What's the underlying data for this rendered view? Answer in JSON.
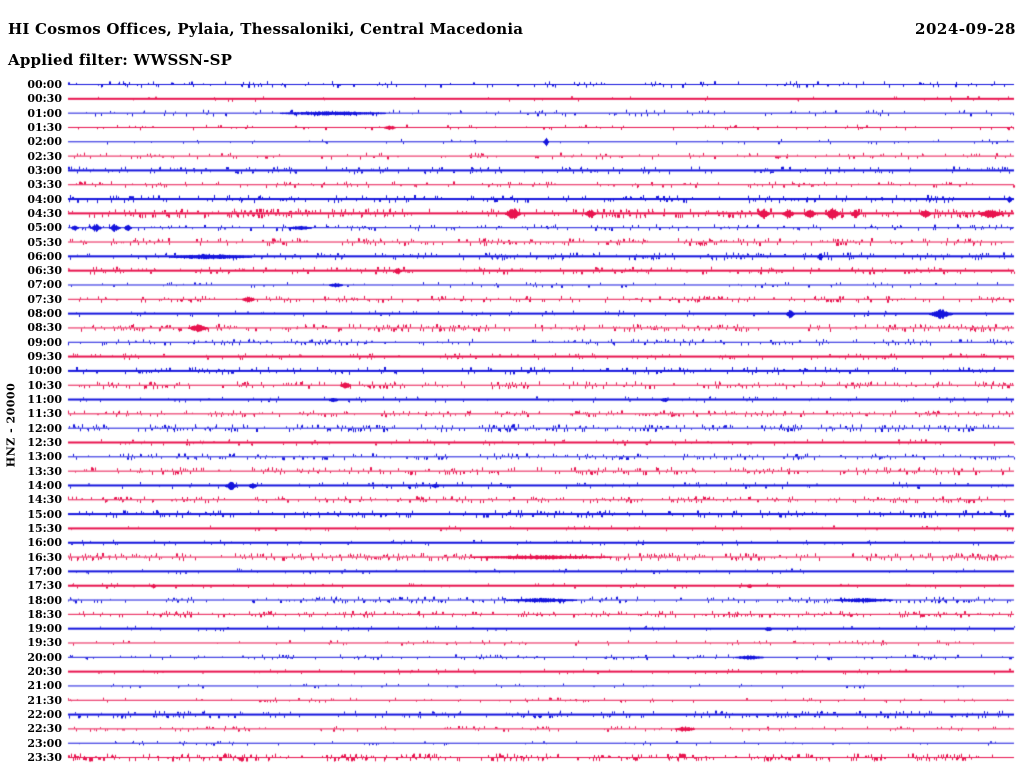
{
  "header": {
    "title": "HI Cosmos Offices, Pylaia, Thessaloniki, Central Macedonia",
    "applied_filter": "Applied filter: WWSSN-SP",
    "date": "2024-09-28"
  },
  "y_axis_label": "HNZ - 20000",
  "palette": {
    "blue": "#1414dd",
    "red": "#e8134e",
    "text": "#000000",
    "background": "#ffffff"
  },
  "chart_data": {
    "type": "line",
    "variant": "helicorder_dayplot",
    "title": "HI Cosmos Offices, Pylaia, Thessaloniki, Central Macedonia",
    "date": "2024-09-28",
    "filter": "WWSSN-SP",
    "channel": "HNZ",
    "scale_label": "HNZ - 20000",
    "minutes_per_row": 30,
    "trace_color_cycle": [
      "blue",
      "red"
    ],
    "legend_position": "none",
    "grid": false,
    "rows": [
      {
        "label": "00:00",
        "color": "blue",
        "noise_density": 0.22,
        "noise_amp": 1.5,
        "line_width": 1,
        "events": []
      },
      {
        "label": "00:30",
        "color": "red",
        "noise_density": 0.06,
        "noise_amp": 1.0,
        "line_width": 2,
        "events": []
      },
      {
        "label": "01:00",
        "color": "blue",
        "noise_density": 0.18,
        "noise_amp": 1.5,
        "line_width": 1,
        "events": [
          [
            0.28,
            2,
            45
          ]
        ]
      },
      {
        "label": "01:30",
        "color": "red",
        "noise_density": 0.14,
        "noise_amp": 1.2,
        "line_width": 1,
        "events": [
          [
            0.34,
            2,
            5
          ]
        ]
      },
      {
        "label": "02:00",
        "color": "blue",
        "noise_density": 0.1,
        "noise_amp": 1.2,
        "line_width": 1,
        "events": [
          [
            0.505,
            4,
            2
          ]
        ]
      },
      {
        "label": "02:30",
        "color": "red",
        "noise_density": 0.2,
        "noise_amp": 1.5,
        "line_width": 1,
        "events": []
      },
      {
        "label": "03:00",
        "color": "blue",
        "noise_density": 0.28,
        "noise_amp": 1.5,
        "line_width": 2,
        "events": []
      },
      {
        "label": "03:30",
        "color": "red",
        "noise_density": 0.24,
        "noise_amp": 1.5,
        "line_width": 1,
        "events": []
      },
      {
        "label": "04:00",
        "color": "blue",
        "noise_density": 0.3,
        "noise_amp": 1.6,
        "line_width": 2,
        "events": [
          [
            0.995,
            3,
            2
          ]
        ]
      },
      {
        "label": "04:30",
        "color": "red",
        "noise_density": 0.5,
        "noise_amp": 2.0,
        "line_width": 2,
        "events": [
          [
            0.47,
            6.5,
            5
          ],
          [
            0.552,
            4,
            4
          ],
          [
            0.735,
            5,
            4
          ],
          [
            0.761,
            5,
            4
          ],
          [
            0.784,
            5,
            4
          ],
          [
            0.808,
            6,
            5
          ],
          [
            0.832,
            4,
            3
          ],
          [
            0.906,
            4,
            4
          ],
          [
            0.975,
            4.5,
            8
          ]
        ]
      },
      {
        "label": "05:00",
        "color": "blue",
        "noise_density": 0.24,
        "noise_amp": 1.5,
        "line_width": 1,
        "events": [
          [
            0.007,
            3,
            3
          ],
          [
            0.029,
            4,
            4
          ],
          [
            0.049,
            4,
            4
          ],
          [
            0.063,
            3.5,
            3
          ],
          [
            0.245,
            2,
            10
          ]
        ]
      },
      {
        "label": "05:30",
        "color": "red",
        "noise_density": 0.42,
        "noise_amp": 1.8,
        "line_width": 1,
        "events": []
      },
      {
        "label": "06:00",
        "color": "blue",
        "noise_density": 0.32,
        "noise_amp": 1.6,
        "line_width": 2,
        "events": [
          [
            0.15,
            2,
            35
          ],
          [
            0.795,
            4,
            2
          ]
        ]
      },
      {
        "label": "06:30",
        "color": "red",
        "noise_density": 0.28,
        "noise_amp": 1.5,
        "line_width": 2,
        "events": [
          [
            0.348,
            3,
            3
          ]
        ]
      },
      {
        "label": "07:00",
        "color": "blue",
        "noise_density": 0.14,
        "noise_amp": 1.2,
        "line_width": 1,
        "events": [
          [
            0.283,
            2,
            6
          ]
        ]
      },
      {
        "label": "07:30",
        "color": "red",
        "noise_density": 0.33,
        "noise_amp": 1.5,
        "line_width": 1,
        "events": [
          [
            0.19,
            3,
            5
          ]
        ]
      },
      {
        "label": "08:00",
        "color": "blue",
        "noise_density": 0.1,
        "noise_amp": 1.2,
        "line_width": 2,
        "events": [
          [
            0.763,
            4,
            3
          ],
          [
            0.922,
            4.5,
            8
          ]
        ]
      },
      {
        "label": "08:30",
        "color": "red",
        "noise_density": 0.42,
        "noise_amp": 1.8,
        "line_width": 1,
        "events": [
          [
            0.137,
            4,
            7
          ]
        ]
      },
      {
        "label": "09:00",
        "color": "blue",
        "noise_density": 0.3,
        "noise_amp": 1.5,
        "line_width": 1,
        "events": []
      },
      {
        "label": "09:30",
        "color": "red",
        "noise_density": 0.18,
        "noise_amp": 1.2,
        "line_width": 2,
        "events": []
      },
      {
        "label": "10:00",
        "color": "blue",
        "noise_density": 0.24,
        "noise_amp": 1.5,
        "line_width": 2,
        "events": []
      },
      {
        "label": "10:30",
        "color": "red",
        "noise_density": 0.38,
        "noise_amp": 1.8,
        "line_width": 1,
        "events": [
          [
            0.293,
            4,
            4
          ]
        ]
      },
      {
        "label": "11:00",
        "color": "blue",
        "noise_density": 0.14,
        "noise_amp": 1.2,
        "line_width": 2,
        "events": [
          [
            0.28,
            2,
            4
          ],
          [
            0.63,
            2,
            3
          ]
        ]
      },
      {
        "label": "11:30",
        "color": "red",
        "noise_density": 0.42,
        "noise_amp": 1.5,
        "line_width": 1,
        "events": []
      },
      {
        "label": "12:00",
        "color": "blue",
        "noise_density": 0.48,
        "noise_amp": 1.8,
        "line_width": 1,
        "events": []
      },
      {
        "label": "12:30",
        "color": "red",
        "noise_density": 0.14,
        "noise_amp": 1.2,
        "line_width": 2,
        "events": []
      },
      {
        "label": "13:00",
        "color": "blue",
        "noise_density": 0.32,
        "noise_amp": 1.5,
        "line_width": 1,
        "events": []
      },
      {
        "label": "13:30",
        "color": "red",
        "noise_density": 0.42,
        "noise_amp": 1.8,
        "line_width": 1,
        "events": []
      },
      {
        "label": "14:00",
        "color": "blue",
        "noise_density": 0.15,
        "noise_amp": 1.4,
        "line_width": 2,
        "events": [
          [
            0.172,
            4,
            4
          ],
          [
            0.195,
            3,
            3
          ],
          [
            0.388,
            2,
            3
          ]
        ]
      },
      {
        "label": "14:30",
        "color": "red",
        "noise_density": 0.42,
        "noise_amp": 1.5,
        "line_width": 1,
        "events": []
      },
      {
        "label": "15:00",
        "color": "blue",
        "noise_density": 0.33,
        "noise_amp": 1.5,
        "line_width": 2,
        "events": []
      },
      {
        "label": "15:30",
        "color": "red",
        "noise_density": 0.1,
        "noise_amp": 1.0,
        "line_width": 2,
        "events": []
      },
      {
        "label": "16:00",
        "color": "blue",
        "noise_density": 0.09,
        "noise_amp": 1.0,
        "line_width": 2,
        "events": []
      },
      {
        "label": "16:30",
        "color": "red",
        "noise_density": 0.46,
        "noise_amp": 1.8,
        "line_width": 1,
        "events": [
          [
            0.5,
            2,
            60
          ]
        ]
      },
      {
        "label": "17:00",
        "color": "blue",
        "noise_density": 0.11,
        "noise_amp": 1.0,
        "line_width": 2,
        "events": []
      },
      {
        "label": "17:30",
        "color": "red",
        "noise_density": 0.11,
        "noise_amp": 1.0,
        "line_width": 2,
        "events": [
          [
            0.09,
            2,
            2
          ],
          [
            0.72,
            2,
            2
          ]
        ]
      },
      {
        "label": "18:00",
        "color": "blue",
        "noise_density": 0.42,
        "noise_amp": 1.5,
        "line_width": 1,
        "events": [
          [
            0.5,
            2,
            30
          ],
          [
            0.84,
            2,
            25
          ]
        ]
      },
      {
        "label": "18:30",
        "color": "red",
        "noise_density": 0.42,
        "noise_amp": 1.5,
        "line_width": 1,
        "events": []
      },
      {
        "label": "19:00",
        "color": "blue",
        "noise_density": 0.09,
        "noise_amp": 1.0,
        "line_width": 2,
        "events": [
          [
            0.74,
            2,
            3
          ]
        ]
      },
      {
        "label": "19:30",
        "color": "red",
        "noise_density": 0.16,
        "noise_amp": 1.2,
        "line_width": 1,
        "events": []
      },
      {
        "label": "20:00",
        "color": "blue",
        "noise_density": 0.22,
        "noise_amp": 1.2,
        "line_width": 1,
        "events": [
          [
            0.72,
            2,
            12
          ]
        ]
      },
      {
        "label": "20:30",
        "color": "red",
        "noise_density": 0.1,
        "noise_amp": 1.0,
        "line_width": 2,
        "events": []
      },
      {
        "label": "21:00",
        "color": "blue",
        "noise_density": 0.1,
        "noise_amp": 1.0,
        "line_width": 1,
        "events": []
      },
      {
        "label": "21:30",
        "color": "red",
        "noise_density": 0.16,
        "noise_amp": 1.1,
        "line_width": 1,
        "events": []
      },
      {
        "label": "22:00",
        "color": "blue",
        "noise_density": 0.33,
        "noise_amp": 1.5,
        "line_width": 2,
        "events": []
      },
      {
        "label": "22:30",
        "color": "red",
        "noise_density": 0.22,
        "noise_amp": 1.2,
        "line_width": 1,
        "events": [
          [
            0.652,
            2.5,
            8
          ]
        ]
      },
      {
        "label": "23:00",
        "color": "blue",
        "noise_density": 0.1,
        "noise_amp": 1.0,
        "line_width": 1,
        "events": []
      },
      {
        "label": "23:30",
        "color": "red",
        "noise_density": 0.52,
        "noise_amp": 1.8,
        "line_width": 1,
        "events": []
      }
    ]
  }
}
